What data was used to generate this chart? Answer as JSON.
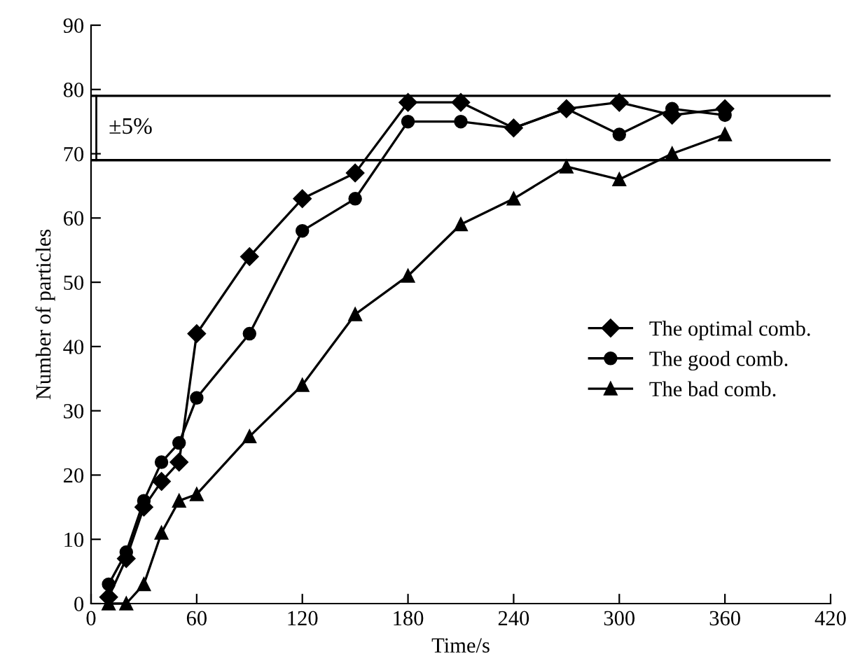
{
  "chart_data": {
    "type": "line",
    "xlabel": "Time/s",
    "ylabel": "Number of particles",
    "x": [
      10,
      20,
      30,
      40,
      50,
      60,
      90,
      120,
      150,
      180,
      210,
      240,
      270,
      300,
      330,
      360
    ],
    "series": [
      {
        "name": "The optimal comb.",
        "color": "#000000",
        "marker": "diamond",
        "values": [
          1,
          7,
          15,
          19,
          22,
          42,
          54,
          63,
          67,
          78,
          78,
          74,
          77,
          78,
          76,
          77
        ]
      },
      {
        "name": "The good comb.",
        "color": "#000000",
        "marker": "circle",
        "values": [
          3,
          8,
          16,
          22,
          25,
          32,
          42,
          58,
          63,
          75,
          75,
          74,
          77,
          73,
          77,
          76
        ]
      },
      {
        "name": "The bad comb.",
        "color": "#000000",
        "marker": "triangle",
        "values": [
          0,
          0,
          3,
          11,
          16,
          17,
          26,
          34,
          45,
          51,
          59,
          63,
          68,
          66,
          70,
          73
        ]
      }
    ],
    "xlim": [
      0,
      420
    ],
    "xticks": [
      0,
      60,
      120,
      180,
      240,
      300,
      360,
      420
    ],
    "ylim": [
      0,
      90
    ],
    "yticks": [
      0,
      10,
      20,
      30,
      40,
      50,
      60,
      70,
      80,
      90
    ],
    "ref_lines": [
      {
        "axis": "y",
        "value": 79,
        "color": "#000000"
      },
      {
        "axis": "y",
        "value": 69,
        "color": "#000000"
      }
    ],
    "annotations": [
      "±5%"
    ],
    "grid": false,
    "legend": "center right",
    "line_style": "solid"
  }
}
